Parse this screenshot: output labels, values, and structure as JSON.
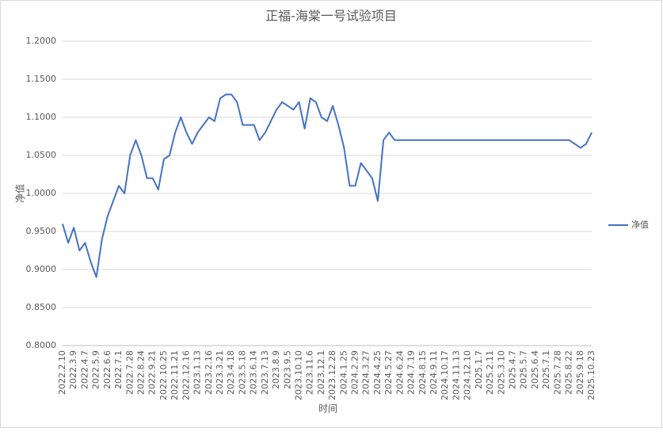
{
  "chart_data": {
    "type": "line",
    "title": "正福-海棠一号试验项目",
    "x_label": "时间",
    "y_label": "净值",
    "categories": [
      "2022.2.10",
      null,
      "2022.3.9",
      null,
      "2022.4.7",
      null,
      "2022.5.9",
      null,
      "2022.6.6",
      null,
      "2022.7.1",
      null,
      "2022.7.28",
      null,
      "2022.8.24",
      null,
      "2022.9.21",
      null,
      "2022.10.25",
      null,
      "2022.11.21",
      null,
      "2022.12.16",
      null,
      "2023.1.13",
      null,
      "2023.2.16",
      null,
      "2023.3.21",
      null,
      "2023.4.18",
      null,
      "2023.5.18",
      null,
      "2023.6.14",
      null,
      "2023.7.13",
      null,
      "2023.8.9",
      null,
      "2023.9.5",
      null,
      "2023.10.10",
      null,
      "2023.11.6",
      null,
      "2023.12.1",
      null,
      "2023.12.28",
      null,
      "2024.1.25",
      null,
      "2024.2.29",
      null,
      "2024.3.27",
      null,
      "2024.4.25",
      null,
      "2024.5.27",
      null,
      "2024.6.24",
      null,
      "2024.7.19",
      null,
      "2024.8.15",
      null,
      "2024.9.11",
      null,
      "2024.10.17",
      null,
      "2024.11.13",
      null,
      "2024.12.10",
      null,
      "2025.1.7",
      null,
      "2025.2.11",
      null,
      "2025.3.10",
      null,
      "2025.4.7",
      null,
      "2025.5.7",
      null,
      "2025.6.4",
      null,
      "2025.7.1",
      null,
      "2025.7.28",
      null,
      "2025.8.22",
      null,
      "2025.9.18",
      null,
      "2025.10.23"
    ],
    "series": [
      {
        "name": "净值",
        "color": "#4472c4",
        "values": [
          0.96,
          0.935,
          0.955,
          0.925,
          0.935,
          0.91,
          0.89,
          0.94,
          0.97,
          0.99,
          1.01,
          1.0,
          1.05,
          1.07,
          1.05,
          1.02,
          1.02,
          1.005,
          1.045,
          1.05,
          1.08,
          1.1,
          1.08,
          1.065,
          1.08,
          1.09,
          1.1,
          1.095,
          1.125,
          1.13,
          1.13,
          1.12,
          1.09,
          1.09,
          1.09,
          1.07,
          1.08,
          1.095,
          1.11,
          1.12,
          1.115,
          1.11,
          1.12,
          1.085,
          1.125,
          1.12,
          1.1,
          1.095,
          1.115,
          1.09,
          1.06,
          1.01,
          1.01,
          1.04,
          1.03,
          1.02,
          0.99,
          1.07,
          1.08,
          1.07,
          1.07,
          1.07,
          1.07,
          1.07,
          1.07,
          1.07,
          1.07,
          1.07,
          1.07,
          1.07,
          1.07,
          1.07,
          1.07,
          1.07,
          1.07,
          1.07,
          1.07,
          1.07,
          1.07,
          1.07,
          1.07,
          1.07,
          1.07,
          1.07,
          1.07,
          1.07,
          1.07,
          1.07,
          1.07,
          1.07,
          1.07,
          1.065,
          1.06,
          1.065,
          1.08
        ]
      }
    ],
    "ylim": [
      0.8,
      1.2
    ],
    "yticks": [
      {
        "value": 0.8,
        "label": "0.8000"
      },
      {
        "value": 0.85,
        "label": "0.8500"
      },
      {
        "value": 0.9,
        "label": "0.9000"
      },
      {
        "value": 0.95,
        "label": "0.9500"
      },
      {
        "value": 1.0,
        "label": "1.0000"
      },
      {
        "value": 1.05,
        "label": "1.0500"
      },
      {
        "value": 1.1,
        "label": "1.1000"
      },
      {
        "value": 1.15,
        "label": "1.1500"
      },
      {
        "value": 1.2,
        "label": "1.2000"
      }
    ],
    "grid": true,
    "legend": "right"
  }
}
